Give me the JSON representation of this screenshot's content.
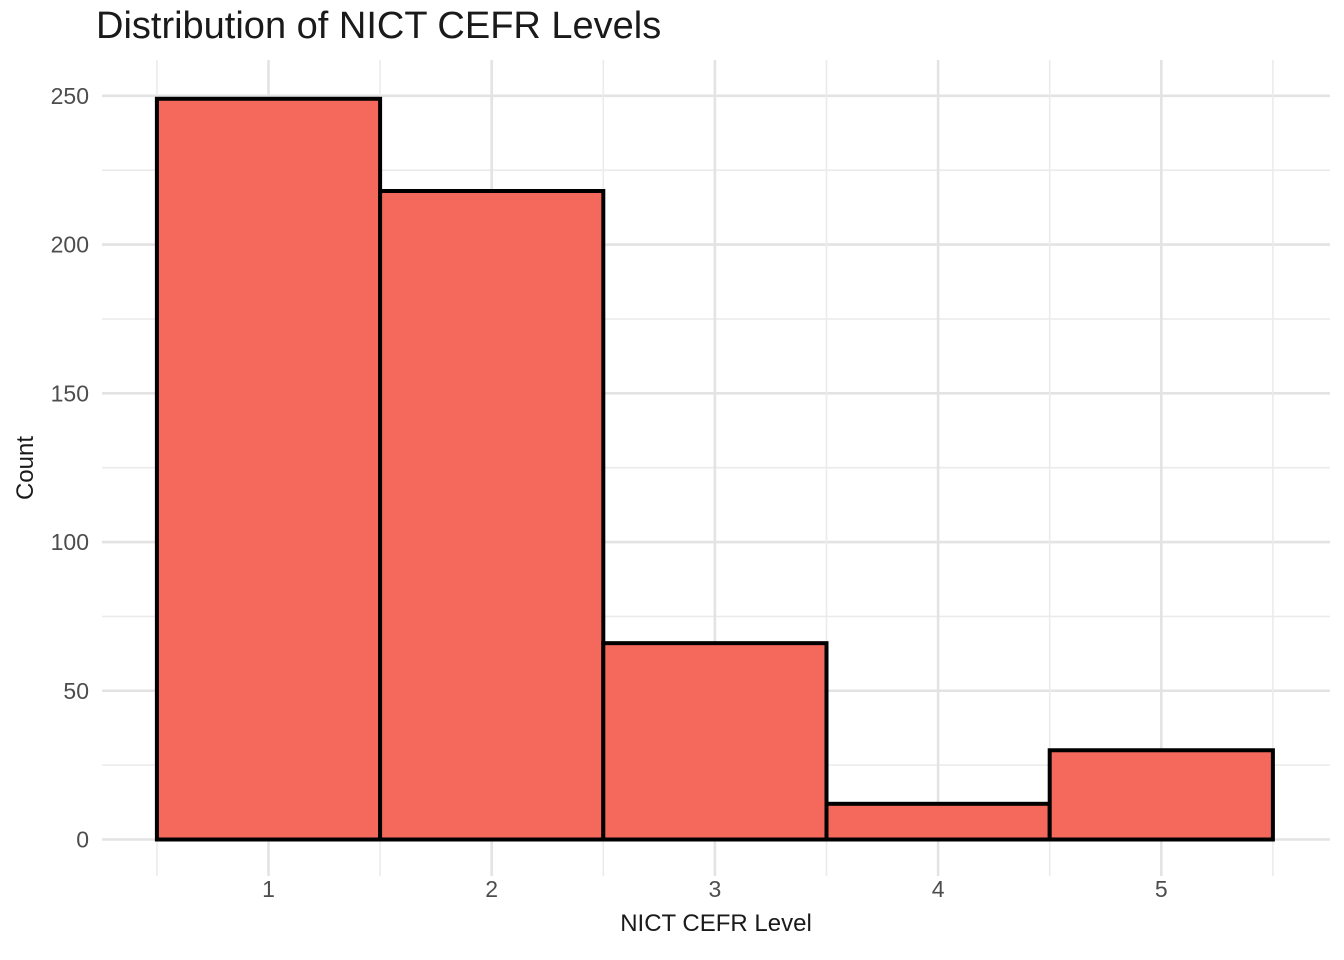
{
  "chart_data": {
    "type": "bar",
    "subtype": "histogram",
    "title": "Distribution of NICT CEFR Levels",
    "xlabel": "NICT CEFR Level",
    "ylabel": "Count",
    "categories": [
      1,
      2,
      3,
      4,
      5
    ],
    "values": [
      249,
      218,
      66,
      12,
      30
    ],
    "x_tick_labels": [
      "1",
      "2",
      "3",
      "4",
      "5"
    ],
    "y_ticks": [
      0,
      50,
      100,
      150,
      200,
      250
    ],
    "y_minor_ticks": [
      25,
      75,
      125,
      175,
      225
    ],
    "x_minor_gridlines": [
      0.5,
      1.5,
      2.5,
      3.5,
      4.5,
      5.5
    ],
    "xlim": [
      0.25,
      5.75
    ],
    "ylim": [
      -12.5,
      262
    ],
    "bar_width": 1.0,
    "grid": "major and minor gridlines, no axis lines, no tick marks",
    "legend": false,
    "colors": {
      "bar_fill": "#F5695C",
      "bar_border": "#000000",
      "grid_major": "#E3E3E3",
      "grid_minor": "#EBEBEB",
      "tick_label": "#4D4D4D",
      "axis_title": "#1A1A1A",
      "title": "#1A1A1A",
      "background": "#FFFFFF"
    }
  }
}
